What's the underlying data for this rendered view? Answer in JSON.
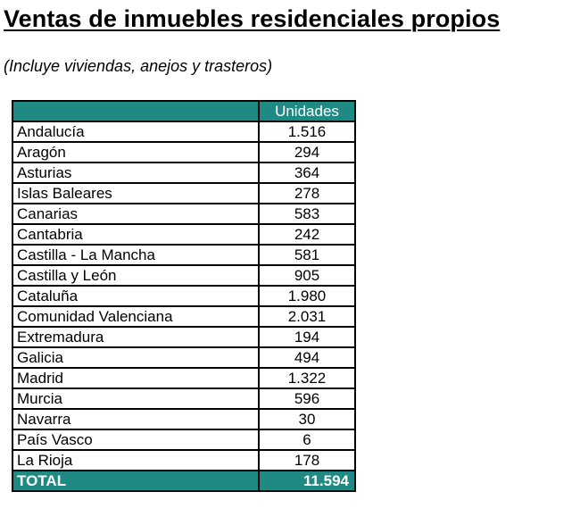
{
  "title": "Ventas de inmuebles residenciales propios",
  "subtitle": "(Incluye viviendas, anejos y trasteros)",
  "table": {
    "header": {
      "region": "",
      "units": "Unidades"
    },
    "rows": [
      {
        "region": "Andalucía",
        "units": "1.516"
      },
      {
        "region": "Aragón",
        "units": "294"
      },
      {
        "region": "Asturias",
        "units": "364"
      },
      {
        "region": "Islas Baleares",
        "units": "278"
      },
      {
        "region": "Canarias",
        "units": "583"
      },
      {
        "region": "Cantabria",
        "units": "242"
      },
      {
        "region": "Castilla - La Mancha",
        "units": "581"
      },
      {
        "region": "Castilla y León",
        "units": "905"
      },
      {
        "region": "Cataluña",
        "units": "1.980"
      },
      {
        "region": "Comunidad Valenciana",
        "units": "2.031"
      },
      {
        "region": "Extremadura",
        "units": "194"
      },
      {
        "region": "Galicia",
        "units": "494"
      },
      {
        "region": "Madrid",
        "units": "1.322"
      },
      {
        "region": "Murcia",
        "units": "596"
      },
      {
        "region": "Navarra",
        "units": "30"
      },
      {
        "region": "País Vasco",
        "units": "6"
      },
      {
        "region": "La Rioja",
        "units": "178"
      }
    ],
    "total": {
      "label": "TOTAL",
      "units": "11.594"
    }
  },
  "colors": {
    "header_fill": "#1f8a83",
    "header_text": "#ffffff",
    "border": "#000000"
  }
}
